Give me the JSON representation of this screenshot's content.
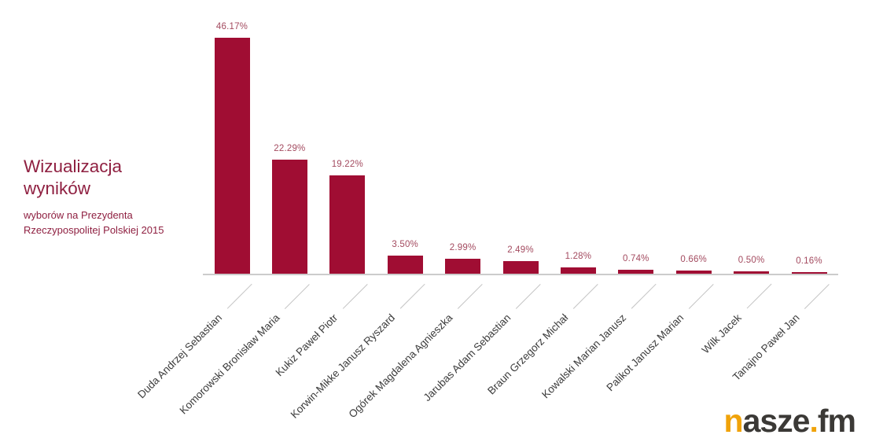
{
  "title": {
    "main": "Wizualizacja wyników",
    "subtitle": "wyborów na Prezydenta Rzeczypospolitej Polskiej 2015"
  },
  "chart_data": {
    "type": "bar",
    "title": "Wizualizacja wyników",
    "subtitle": "wyborów na Prezydenta Rzeczypospolitej Polskiej 2015",
    "categories": [
      "Duda Andrzej Sebastian",
      "Komorowski Bronisław Maria",
      "Kukiz Paweł Piotr",
      "Korwin-Mikke Janusz Ryszard",
      "Ogórek Magdalena Agnieszka",
      "Jarubas Adam Sebastian",
      "Braun Grzegorz Michał",
      "Kowalski Marian Janusz",
      "Palikot Janusz Marian",
      "Wilk Jacek",
      "Tanajno Paweł Jan"
    ],
    "values": [
      46.17,
      22.29,
      19.22,
      3.5,
      2.99,
      2.49,
      1.28,
      0.74,
      0.66,
      0.5,
      0.16
    ],
    "value_labels": [
      "46.17%",
      "22.29%",
      "19.22%",
      "3.50%",
      "2.99%",
      "2.49%",
      "1.28%",
      "0.74%",
      "0.66%",
      "0.50%",
      "0.16%"
    ],
    "xlabel": "",
    "ylabel": "",
    "ylim": [
      0,
      50
    ],
    "grid": false,
    "legend": false,
    "bar_color": "#a00d33",
    "x_tick_label_rotation_deg": -45
  },
  "colors": {
    "bar": "#a00d33",
    "value_label": "#a34a5f",
    "title": "#8f2041",
    "axis_line": "#cccccc",
    "tick_line": "#c4c4c4",
    "category_label": "#3c3c3c",
    "logo_yellow": "#f0a30a",
    "logo_dark": "#3b3936"
  },
  "logo": {
    "n": "n",
    "asze": "asze",
    "dot": ".",
    "fm": "fm",
    "full_text": "nasze.fm"
  }
}
